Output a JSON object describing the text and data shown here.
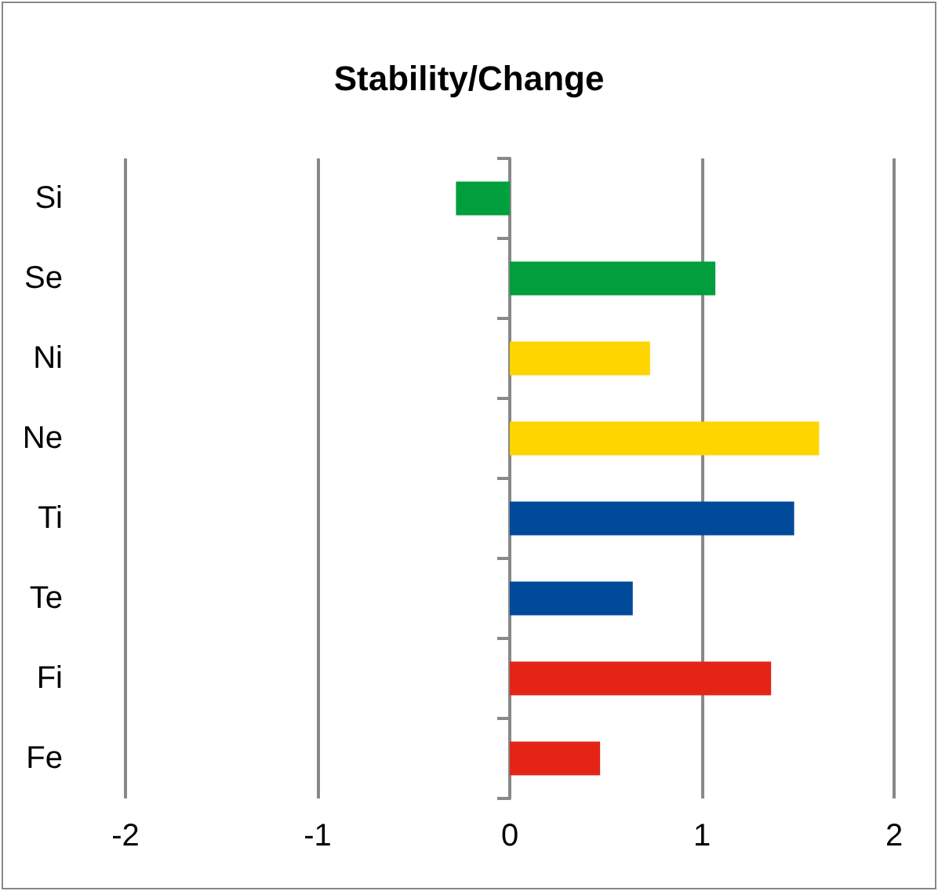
{
  "chart_data": {
    "type": "bar",
    "title": "Stability/Change",
    "orientation": "horizontal",
    "categories": [
      "Si",
      "Se",
      "Ni",
      "Ne",
      "Ti",
      "Te",
      "Fi",
      "Fe"
    ],
    "values": [
      -0.28,
      1.07,
      0.73,
      1.61,
      1.48,
      0.64,
      1.36,
      0.47
    ],
    "colors": [
      "#009e3c",
      "#009e3c",
      "#ffd500",
      "#ffd500",
      "#004a9a",
      "#004a9a",
      "#e32417",
      "#e32417"
    ],
    "xlim": [
      -2,
      2
    ],
    "xticks": [
      -2,
      -1,
      0,
      1,
      2
    ],
    "grid": "x"
  }
}
